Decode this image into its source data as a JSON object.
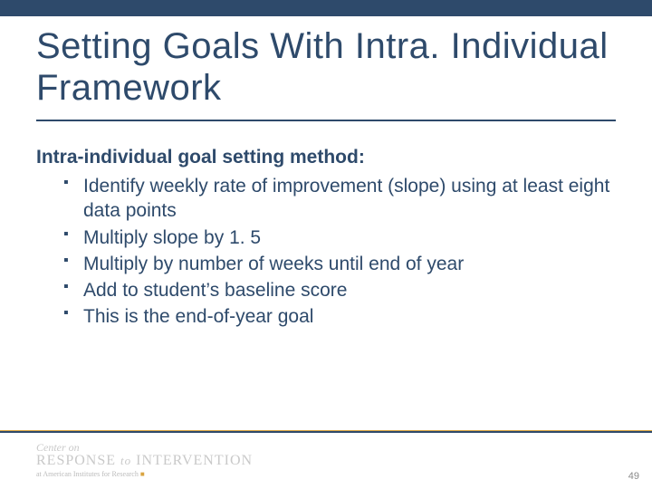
{
  "colors": {
    "primary": "#2e4a6b",
    "accent": "#d9a441",
    "background": "#ffffff",
    "logo_text": "#c9c9c9",
    "page_num": "#8a8a8a"
  },
  "typography": {
    "title_fontsize": 40,
    "body_fontsize": 21,
    "font_family": "Arial"
  },
  "title": "Setting Goals With Intra. Individual Framework",
  "subtitle": "Intra-individual goal setting method:",
  "bullets": [
    "Identify weekly rate of improvement (slope) using at least eight data points",
    "Multiply slope by 1. 5",
    "Multiply by number of weeks until end of year",
    "Add to student’s baseline score",
    "This is the end-of-year goal"
  ],
  "logo": {
    "line1": "Center on",
    "line2_a": "RESPONSE",
    "line2_to": "to",
    "line2_b": "INTERVENTION",
    "line3": "at American Institutes for Research"
  },
  "page_number": "49"
}
